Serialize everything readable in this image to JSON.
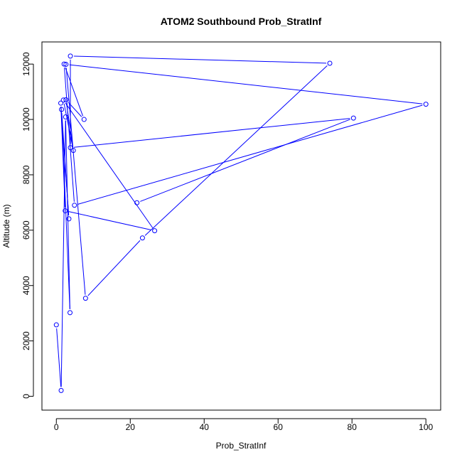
{
  "chart_data": {
    "type": "line",
    "title": "ATOM2 Southbound Prob_StratInf",
    "xlabel": "Prob_StratInf",
    "ylabel": "Altitude (m)",
    "xlim": [
      -3.9,
      104
    ],
    "ylim": [
      -500,
      12800
    ],
    "xticks": [
      0,
      20,
      40,
      60,
      80,
      100
    ],
    "yticks": [
      0,
      2000,
      4000,
      6000,
      8000,
      10000,
      12000
    ],
    "grid": false,
    "legend": "none",
    "series_color": "#0000ff",
    "series": [
      {
        "points": [
          {
            "x": 0.0,
            "y": 2580
          },
          {
            "x": 1.3,
            "y": 210
          },
          {
            "x": 2.5,
            "y": 10090
          },
          {
            "x": 3.7,
            "y": 3020
          },
          {
            "x": 1.4,
            "y": 10360
          },
          {
            "x": 3.4,
            "y": 6410
          },
          {
            "x": 1.2,
            "y": 10590
          },
          {
            "x": 2.4,
            "y": 6700
          },
          {
            "x": 26.6,
            "y": 5980
          },
          {
            "x": 1.9,
            "y": 10700
          },
          {
            "x": 4.6,
            "y": 8880
          },
          {
            "x": 2.6,
            "y": 10710
          },
          {
            "x": 7.5,
            "y": 10000
          },
          {
            "x": 2.1,
            "y": 12000
          },
          {
            "x": 4.9,
            "y": 6900
          },
          {
            "x": 100.0,
            "y": 10550
          },
          {
            "x": 2.6,
            "y": 11990
          },
          {
            "x": 7.9,
            "y": 3540
          },
          {
            "x": 23.3,
            "y": 5720
          },
          {
            "x": 74.0,
            "y": 12030
          },
          {
            "x": 3.8,
            "y": 12290
          },
          {
            "x": 3.8,
            "y": 8980
          },
          {
            "x": 80.4,
            "y": 10050
          },
          {
            "x": 21.8,
            "y": 6990
          }
        ]
      }
    ]
  }
}
